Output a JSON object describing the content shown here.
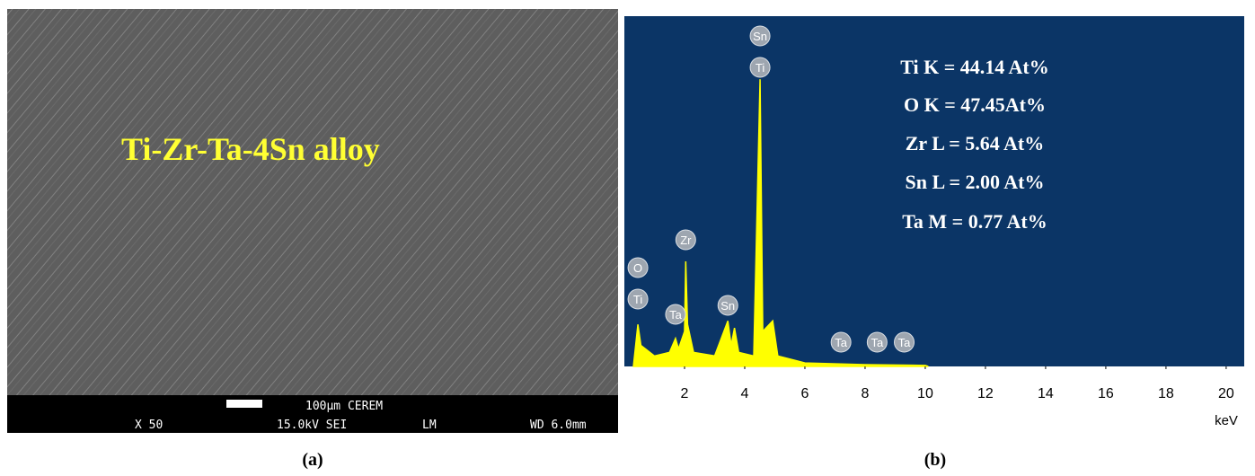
{
  "panel_a": {
    "overlay": "Ti-Zr-Ta-4Sn alloy",
    "scale_bar": "100µm CEREM",
    "magnification": "X 50",
    "voltage": "15.0kV SEI",
    "mode": "LM",
    "working_distance": "WD 6.0mm",
    "caption": "(a)"
  },
  "chart_data": {
    "type": "area",
    "color": "#ffff00",
    "background": "#0b3566",
    "x": [
      0.3,
      0.4,
      0.45,
      0.55,
      0.7,
      1.0,
      1.5,
      1.7,
      1.8,
      2.0,
      2.04,
      2.1,
      2.3,
      3.0,
      3.44,
      3.55,
      3.66,
      3.8,
      4.3,
      4.51,
      4.6,
      4.93,
      5.1,
      6.0,
      8.0,
      10.0,
      10.1
    ],
    "values": [
      0,
      8,
      12,
      6,
      5,
      3,
      4,
      8,
      5,
      10,
      30,
      12,
      4,
      3,
      13,
      6,
      11,
      4,
      3,
      82,
      10,
      13,
      3,
      1,
      0.5,
      0.3,
      0
    ],
    "xlim": [
      0,
      20.6
    ],
    "ylim": [
      0,
      100
    ],
    "xticks": [
      2,
      4,
      6,
      8,
      10,
      12,
      14,
      16,
      18,
      20
    ],
    "xlabel": "keV",
    "peak_labels": [
      {
        "label": "Sn",
        "x": 4.51
      },
      {
        "label": "Ti",
        "x": 4.51
      },
      {
        "label": "O",
        "x": 0.45
      },
      {
        "label": "Ti",
        "x": 0.45
      },
      {
        "label": "Ta",
        "x": 1.7
      },
      {
        "label": "Zr",
        "x": 2.04
      },
      {
        "label": "Sn",
        "x": 3.44
      },
      {
        "label": "Ta",
        "x": 7.2
      },
      {
        "label": "Ta",
        "x": 8.4
      },
      {
        "label": "Ta",
        "x": 9.3
      }
    ],
    "composition": [
      "Ti K = 44.14 At%",
      "O K = 47.45At%",
      "Zr L = 5.64 At%",
      "Sn L = 2.00 At%",
      "Ta M = 0.77 At%"
    ],
    "caption": "(b)"
  }
}
